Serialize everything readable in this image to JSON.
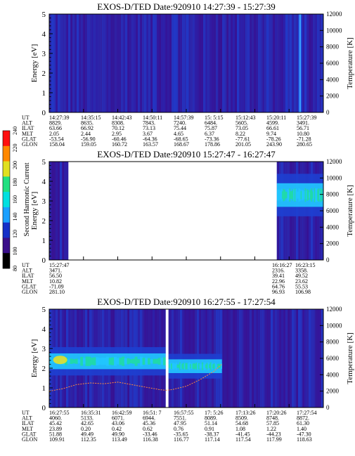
{
  "colors": {
    "background_low": "#3a0f8a",
    "plot_blue": "#1e3fd0",
    "band_cyan": "#22c8ff",
    "band_green": "#20e09a",
    "band_yellow": "#f0e020",
    "temperature_trace": "#ff8a3c",
    "gap_white": "#ffffff"
  },
  "colorbar": {
    "label": "Second Harmonic Current",
    "ticks": [
      "80",
      "100",
      "120",
      "140",
      "160",
      "180",
      "200",
      "220",
      "240"
    ],
    "colors": [
      "#000000",
      "#3a0f8a",
      "#1530c8",
      "#1aa0ff",
      "#00e0e0",
      "#20e080",
      "#e0e020",
      "#ff8800",
      "#ff1010"
    ]
  },
  "row_labels": [
    "UT",
    "ALT",
    "ILAT",
    "MLT",
    "GLAT",
    "GLON"
  ],
  "chart_data": [
    {
      "type": "heatmap",
      "title": "EXOS-D/TED   Date:920910   14:27:39 - 15:27:39",
      "ylabel": "Energy [eV]",
      "ylabel_right": "Temperature [K]",
      "ylim": [
        0,
        5
      ],
      "ylim_right": [
        0,
        12000
      ],
      "yticks": [
        "0",
        "1",
        "2",
        "3",
        "4",
        "5"
      ],
      "yticks_right": [
        "0",
        "2000",
        "4000",
        "6000",
        "8000",
        "10000",
        "12000"
      ],
      "data_gaps": [],
      "bands": [],
      "spikes": [
        0.915
      ],
      "temperature_trace": [],
      "table": [
        [
          "14:27:39",
          "14:35:15",
          "14:42:43",
          "14:50:11",
          "14:57:39",
          "15: 5:15",
          "15:12:43",
          "15:20:11",
          "15:27:39"
        ],
        [
          "8829.",
          "8635.",
          "8308.",
          "7843.",
          "7240.",
          "6484.",
          "5605.",
          "4599.",
          "3491."
        ],
        [
          "63.66",
          "66.92",
          "70.12",
          "73.13",
          "75.44",
          "75.87",
          "73.05",
          "66.61",
          "56.71"
        ],
        [
          "2.05",
          "2.44",
          "2.95",
          "3.67",
          "4.65",
          "6.37",
          "8.22",
          "9.74",
          "10.80"
        ],
        [
          "-53.54",
          "-56.90",
          "-60.46",
          "-64.36",
          "-68.65",
          "-73.36",
          "-77.61",
          "-78.26",
          "-71.28"
        ],
        [
          "158.04",
          "159.05",
          "160.72",
          "163.57",
          "168.67",
          "178.86",
          "201.05",
          "243.90",
          "280.65"
        ]
      ]
    },
    {
      "type": "heatmap",
      "title": "EXOS-D/TED   Date:920910   15:27:47 - 16:27:47",
      "ylabel": "Energy [eV]",
      "ylabel_right": "Temperature [K]",
      "ylim": [
        0,
        5
      ],
      "ylim_right": [
        0,
        12000
      ],
      "yticks": [
        "0",
        "1",
        "2",
        "3",
        "4",
        "5"
      ],
      "yticks_right": [
        "0",
        "2000",
        "4000",
        "6000",
        "8000",
        "10000",
        "12000"
      ],
      "data_gaps": [
        [
          0.07,
          0.83
        ]
      ],
      "bands": [
        {
          "x": [
            0.83,
            1.0
          ],
          "e_center": 3.3,
          "e_width": 1.2
        }
      ],
      "spikes": [],
      "temperature_trace": [],
      "table": [
        [
          "15:27:47",
          "",
          "",
          "",
          "",
          "",
          "",
          "16:16:27",
          "16:23:15"
        ],
        [
          "3471.",
          "",
          "",
          "",
          "",
          "",
          "",
          "2316.",
          "3358."
        ],
        [
          "56.50",
          "",
          "",
          "",
          "",
          "",
          "",
          "39.41",
          "49.52"
        ],
        [
          "10.82",
          "",
          "",
          "",
          "",
          "",
          "",
          "22.96",
          "23.62"
        ],
        [
          "-71.09",
          "",
          "",
          "",
          "",
          "",
          "",
          "64.76",
          "55.53"
        ],
        [
          "281.10",
          "",
          "",
          "",
          "",
          "",
          "",
          "96.93",
          "106.98"
        ]
      ]
    },
    {
      "type": "heatmap",
      "title": "EXOS-D/TED   Date:920910   16:27:55 - 17:27:54",
      "ylabel": "Energy [eV]",
      "ylabel_right": "Temperature [K]",
      "ylim": [
        0,
        5
      ],
      "ylim_right": [
        0,
        12000
      ],
      "yticks": [
        "0",
        "1",
        "2",
        "3",
        "4",
        "5"
      ],
      "yticks_right": [
        "0",
        "2000",
        "4000",
        "6000",
        "8000",
        "10000",
        "12000"
      ],
      "data_gaps": [
        [
          0.425,
          0.435
        ]
      ],
      "bands": [
        {
          "x": [
            0.0,
            0.425
          ],
          "e_center": 2.35,
          "e_width": 0.8
        },
        {
          "x": [
            0.435,
            0.63
          ],
          "e_center": 2.1,
          "e_width": 0.7
        }
      ],
      "spikes": [],
      "temperature_trace": [
        [
          0.0,
          2000
        ],
        [
          0.05,
          2300
        ],
        [
          0.1,
          2800
        ],
        [
          0.15,
          3000
        ],
        [
          0.2,
          2900
        ],
        [
          0.25,
          3100
        ],
        [
          0.3,
          2800
        ],
        [
          0.35,
          2500
        ],
        [
          0.4,
          2200
        ],
        [
          0.425,
          2100
        ],
        [
          0.45,
          2200
        ],
        [
          0.5,
          2600
        ],
        [
          0.55,
          3400
        ],
        [
          0.6,
          4400
        ],
        [
          0.63,
          5300
        ]
      ],
      "table": [
        [
          "16:27:55",
          "16:35:31",
          "16:42:59",
          "16:51: 7",
          "16:57:55",
          "17: 5:26",
          "17:13:26",
          "17:20:26",
          "17:27:54"
        ],
        [
          "4060.",
          "5133.",
          "6071.",
          "6944.",
          "7551.",
          "8089.",
          "8509.",
          "8748.",
          "8872."
        ],
        [
          "45.42",
          "42.65",
          "43.06",
          "45.36",
          "47.95",
          "51.14",
          "54.68",
          "57.85",
          "61.30"
        ],
        [
          "23.89",
          "0.20",
          "0.42",
          "0.62",
          "0.76",
          "0.91",
          "1.08",
          "1.22",
          "1.40"
        ],
        [
          "51.88",
          "49.49",
          "49.90",
          "-33.46",
          "-35.65",
          "-38.37",
          "-41.45",
          "-44.23",
          "-47.30"
        ],
        [
          "109.91",
          "112.35",
          "113.49",
          "116.38",
          "116.77",
          "117.14",
          "117.54",
          "117.99",
          "118.63"
        ]
      ]
    }
  ]
}
